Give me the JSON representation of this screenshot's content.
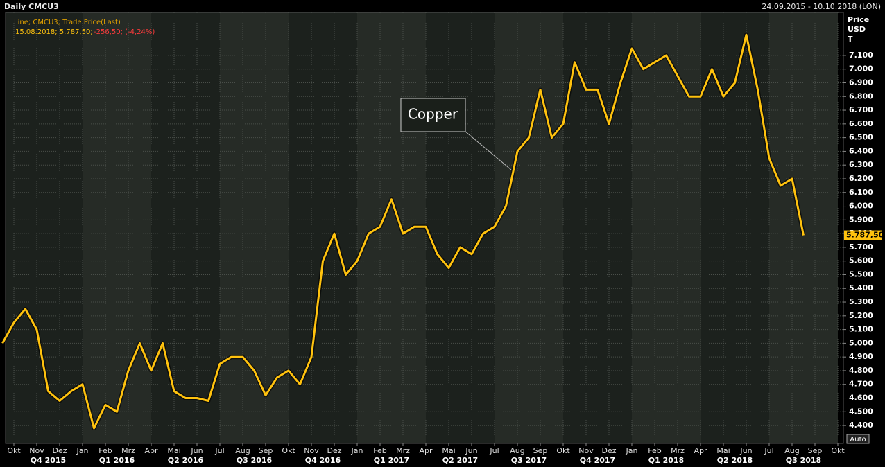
{
  "chart_data": {
    "type": "line",
    "title": "Daily CMCU3",
    "date_range": "24.09.2015 - 10.10.2018 (LON)",
    "legend_title": "Line; CMCU3; Trade Price(Last)",
    "legend_last": "15.08.2018; 5.787,50;",
    "legend_change": "-256,50; (-4,24%)",
    "axis_title": [
      "Price",
      "USD",
      "T"
    ],
    "annotation": "Copper",
    "last_value_label": "5.787,50",
    "button": "Auto",
    "categories": [
      null,
      "Okt",
      null,
      "Nov",
      null,
      "Dez",
      null,
      "Jan",
      null,
      "Feb",
      null,
      "Mrz",
      null,
      "Apr",
      null,
      "Mai",
      null,
      "Jun",
      null,
      "Jul",
      null,
      "Aug",
      null,
      "Sep",
      null,
      "Okt",
      null,
      "Nov",
      null,
      "Dez",
      null,
      "Jan",
      null,
      "Feb",
      null,
      "Mrz",
      null,
      "Apr",
      null,
      "Mai",
      null,
      "Jun",
      null,
      "Jul",
      null,
      "Aug",
      null,
      "Sep",
      null,
      "Okt",
      null,
      "Nov",
      null,
      "Dez",
      null,
      "Jan",
      null,
      "Feb",
      null,
      "Mrz",
      null,
      "Apr",
      null,
      "Mai",
      null,
      "Jun",
      null,
      "Jul",
      null,
      "Aug",
      null,
      "Sep",
      null,
      "Okt"
    ],
    "quarters": [
      "Q4 2015",
      "Q1 2016",
      "Q2 2016",
      "Q3 2016",
      "Q4 2016",
      "Q1 2017",
      "Q2 2017",
      "Q3 2017",
      "Q4 2017",
      "Q1 2018",
      "Q2 2018",
      "Q3 2018"
    ],
    "series": [
      {
        "name": "CMCU3",
        "color": "#ffc20e",
        "values": [
          5000,
          5150,
          5250,
          5100,
          4650,
          4580,
          4650,
          4700,
          4380,
          4550,
          4500,
          4800,
          5000,
          4800,
          5000,
          4650,
          4600,
          4600,
          4580,
          4850,
          4900,
          4900,
          4800,
          4620,
          4750,
          4800,
          4700,
          4900,
          5600,
          5800,
          5500,
          5600,
          5800,
          5850,
          6050,
          5800,
          5850,
          5850,
          5650,
          5550,
          5700,
          5650,
          5800,
          5850,
          6000,
          6400,
          6500,
          6850,
          6500,
          6600,
          7050,
          6850,
          6850,
          6600,
          6900,
          7150,
          7000,
          7050,
          7100,
          6950,
          6800,
          6800,
          7000,
          6800,
          6900,
          7250,
          6850,
          6350,
          6150,
          6200,
          5787.5,
          null,
          null,
          null
        ]
      }
    ],
    "ylim": [
      4269,
      7413
    ],
    "yticks": [
      {
        "value": 4400,
        "label": "4.400"
      },
      {
        "value": 4500,
        "label": "4.500"
      },
      {
        "value": 4600,
        "label": "4.600"
      },
      {
        "value": 4700,
        "label": "4.700"
      },
      {
        "value": 4800,
        "label": "4.800"
      },
      {
        "value": 4900,
        "label": "4.900"
      },
      {
        "value": 5000,
        "label": "5.000"
      },
      {
        "value": 5100,
        "label": "5.100"
      },
      {
        "value": 5200,
        "label": "5.200"
      },
      {
        "value": 5300,
        "label": "5.300"
      },
      {
        "value": 5400,
        "label": "5.400"
      },
      {
        "value": 5500,
        "label": "5.500"
      },
      {
        "value": 5600,
        "label": "5.600"
      },
      {
        "value": 5700,
        "label": "5.700"
      },
      {
        "value": 5800,
        "label": "5.800"
      },
      {
        "value": 5900,
        "label": "5.900"
      },
      {
        "value": 6000,
        "label": "6.000"
      },
      {
        "value": 6100,
        "label": "6.100"
      },
      {
        "value": 6200,
        "label": "6.200"
      },
      {
        "value": 6300,
        "label": "6.300"
      },
      {
        "value": 6400,
        "label": "6.400"
      },
      {
        "value": 6500,
        "label": "6.500"
      },
      {
        "value": 6600,
        "label": "6.600"
      },
      {
        "value": 6700,
        "label": "6.700"
      },
      {
        "value": 6800,
        "label": "6.800"
      },
      {
        "value": 6900,
        "label": "6.900"
      },
      {
        "value": 7000,
        "label": "7.000"
      },
      {
        "value": 7100,
        "label": "7.100"
      }
    ],
    "grid": true
  }
}
